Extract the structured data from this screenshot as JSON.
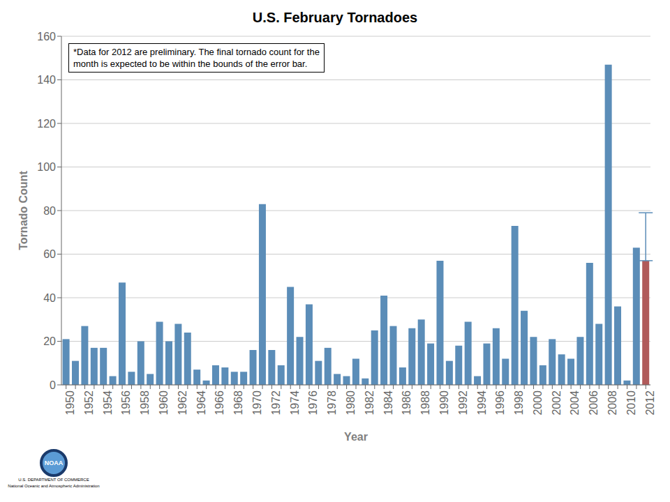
{
  "chart_data": {
    "type": "bar",
    "title": "U.S. February Tornadoes",
    "x_label": "Year",
    "y_label": "Tornado Count",
    "annotations": [
      [
        "*Data for 2012 are preliminary. The final tornado count for the",
        "month is expected to be within the bounds of the error bar."
      ],
      [
        "NOAA",
        "U.S. DEPARTMENT OF COMMERCE",
        "National Oceanic and Atmospheric Administration"
      ]
    ],
    "categories": [
      "1950",
      null,
      "1952",
      null,
      "1954",
      null,
      "1956",
      null,
      "1958",
      null,
      "1960",
      null,
      "1962",
      null,
      "1964",
      null,
      "1966",
      null,
      "1968",
      null,
      "1970",
      null,
      "1972",
      null,
      "1974",
      null,
      "1976",
      null,
      "1978",
      null,
      "1980",
      null,
      "1982",
      null,
      "1984",
      null,
      "1986",
      null,
      "1988",
      null,
      "1990",
      null,
      "1992",
      null,
      "1994",
      null,
      "1996",
      null,
      "1998",
      null,
      "2000",
      null,
      "2002",
      null,
      "2004",
      null,
      "2006",
      null,
      "2008",
      null,
      "2010",
      null,
      "2012"
    ],
    "values": [
      21,
      11,
      27,
      17,
      17,
      4,
      47,
      6,
      20,
      5,
      29,
      20,
      28,
      24,
      7,
      2,
      9,
      8,
      6,
      6,
      16,
      83,
      16,
      9,
      45,
      22,
      37,
      11,
      17,
      5,
      4,
      12,
      3,
      25,
      41,
      27,
      8,
      26,
      30,
      19,
      57,
      11,
      18,
      29,
      4,
      19,
      26,
      12,
      73,
      34,
      22,
      9,
      21,
      14,
      12,
      22,
      56,
      28,
      147,
      36,
      2,
      63,
      57
    ],
    "colors": [
      "#5b8db8",
      "#5b8db8",
      "#5b8db8",
      "#5b8db8",
      "#5b8db8",
      "#5b8db8",
      "#5b8db8",
      "#5b8db8",
      "#5b8db8",
      "#5b8db8",
      "#5b8db8",
      "#5b8db8",
      "#5b8db8",
      "#5b8db8",
      "#5b8db8",
      "#5b8db8",
      "#5b8db8",
      "#5b8db8",
      "#5b8db8",
      "#5b8db8",
      "#5b8db8",
      "#5b8db8",
      "#5b8db8",
      "#5b8db8",
      "#5b8db8",
      "#5b8db8",
      "#5b8db8",
      "#5b8db8",
      "#5b8db8",
      "#5b8db8",
      "#5b8db8",
      "#5b8db8",
      "#5b8db8",
      "#5b8db8",
      "#5b8db8",
      "#5b8db8",
      "#5b8db8",
      "#5b8db8",
      "#5b8db8",
      "#5b8db8",
      "#5b8db8",
      "#5b8db8",
      "#5b8db8",
      "#5b8db8",
      "#5b8db8",
      "#5b8db8",
      "#5b8db8",
      "#5b8db8",
      "#5b8db8",
      "#5b8db8",
      "#5b8db8",
      "#5b8db8",
      "#5b8db8",
      "#5b8db8",
      "#5b8db8",
      "#5b8db8",
      "#5b8db8",
      "#5b8db8",
      "#5b8db8",
      "#5b8db8",
      "#5b8db8",
      "#5b8db8",
      "#b05a5a"
    ],
    "error_bars": {
      "color": "#5b8db8",
      "low": [
        null,
        null,
        null,
        null,
        null,
        null,
        null,
        null,
        null,
        null,
        null,
        null,
        null,
        null,
        null,
        null,
        null,
        null,
        null,
        null,
        null,
        null,
        null,
        null,
        null,
        null,
        null,
        null,
        null,
        null,
        null,
        null,
        null,
        null,
        null,
        null,
        null,
        null,
        null,
        null,
        null,
        null,
        null,
        null,
        null,
        null,
        null,
        null,
        null,
        null,
        null,
        null,
        null,
        null,
        null,
        null,
        null,
        null,
        null,
        null,
        null,
        null,
        0
      ],
      "high": [
        null,
        null,
        null,
        null,
        null,
        null,
        null,
        null,
        null,
        null,
        null,
        null,
        null,
        null,
        null,
        null,
        null,
        null,
        null,
        null,
        null,
        null,
        null,
        null,
        null,
        null,
        null,
        null,
        null,
        null,
        null,
        null,
        null,
        null,
        null,
        null,
        null,
        null,
        null,
        null,
        null,
        null,
        null,
        null,
        null,
        null,
        null,
        null,
        null,
        null,
        null,
        null,
        null,
        null,
        null,
        null,
        null,
        null,
        null,
        null,
        null,
        null,
        22
      ]
    },
    "ylim": [
      0,
      160
    ],
    "yticks": [
      0,
      20,
      40,
      60,
      80,
      100,
      120,
      140,
      160
    ],
    "grid": true
  }
}
